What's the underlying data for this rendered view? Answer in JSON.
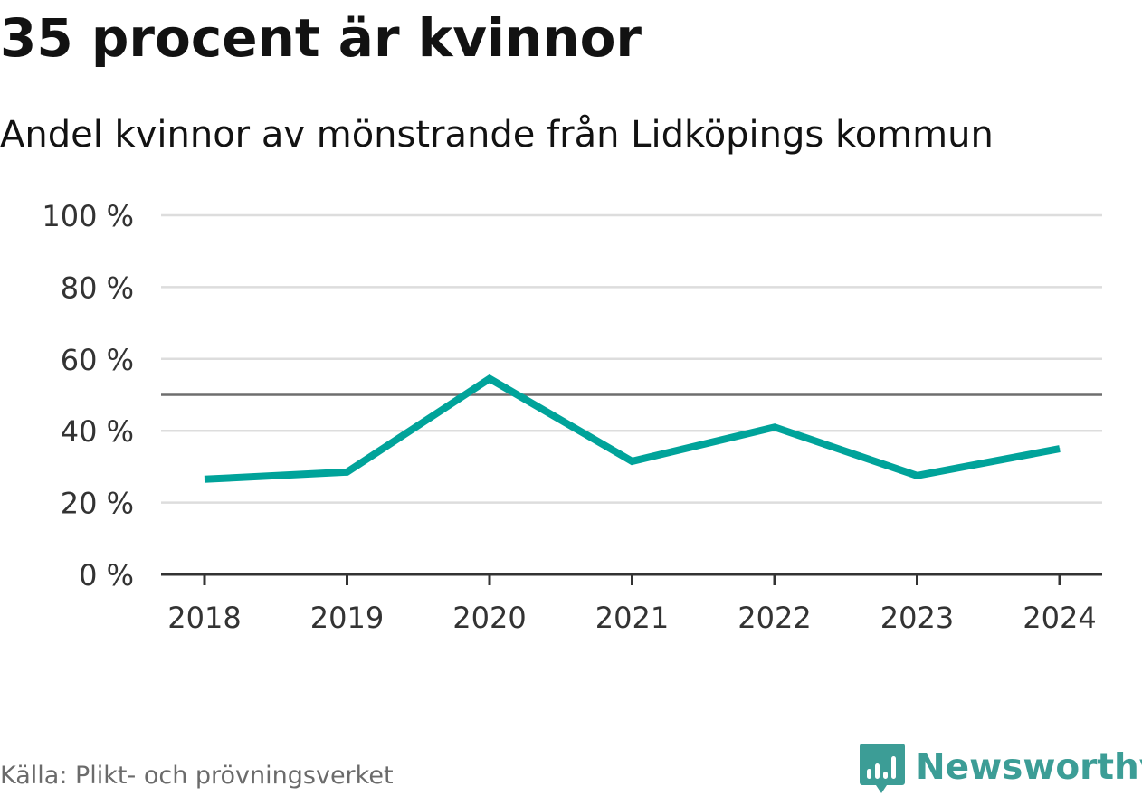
{
  "title": "35 procent är kvinnor",
  "subtitle": "Andel kvinnor av mönstrande från Lidköpings kommun",
  "source": "Källa: Plikt- och prövningsverket",
  "logo": {
    "text": "Newsworthy",
    "icon": "bar-chart-speech-bubble-icon"
  },
  "colors": {
    "line": "#00a39a",
    "reference_line": "#6e6e6e",
    "grid": "#dddddd",
    "axis": "#333333",
    "brand": "#3c9d96"
  },
  "chart_data": {
    "type": "line",
    "title": "35 procent är kvinnor",
    "subtitle": "Andel kvinnor av mönstrande från Lidköpings kommun",
    "xlabel": "",
    "ylabel": "",
    "categories": [
      "2018",
      "2019",
      "2020",
      "2021",
      "2022",
      "2023",
      "2024"
    ],
    "series": [
      {
        "name": "Andel kvinnor",
        "values": [
          26.5,
          28.5,
          54.5,
          31.5,
          41,
          27.5,
          35
        ]
      }
    ],
    "ylim": [
      0,
      100
    ],
    "yticks": [
      0,
      20,
      40,
      60,
      80,
      100
    ],
    "ytick_labels": [
      "0 %",
      "20 %",
      "40 %",
      "60 %",
      "80 %",
      "100 %"
    ],
    "reference_line": 50,
    "grid": true,
    "legend": "none"
  }
}
